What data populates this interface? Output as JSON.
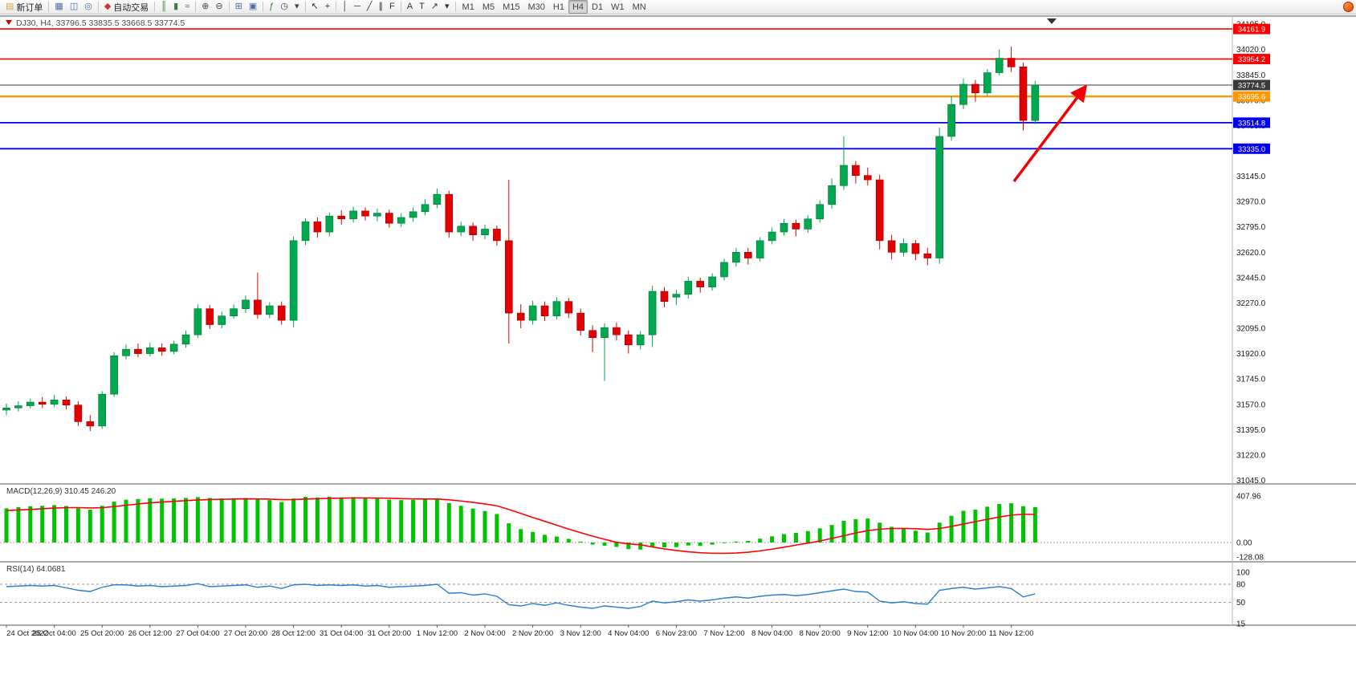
{
  "toolbar": {
    "groups": [
      {
        "items": [
          {
            "name": "new-order-button",
            "glyph": "▤",
            "glyph_color": "#d9a33c",
            "label": "新订单"
          }
        ]
      },
      {
        "items": [
          {
            "name": "charts-icon",
            "glyph": "▦",
            "glyph_color": "#4a6ea8"
          },
          {
            "name": "profile-icon",
            "glyph": "◫",
            "glyph_color": "#4a6ea8"
          },
          {
            "name": "market-watch-icon",
            "glyph": "◎",
            "glyph_color": "#4a6ea8"
          }
        ]
      },
      {
        "items": [
          {
            "name": "autotrading-button",
            "glyph": "◆",
            "glyph_color": "#c03a3a",
            "label": "自动交易"
          }
        ]
      },
      {
        "items": [
          {
            "name": "bar-chart-icon",
            "glyph": "║",
            "glyph_color": "#3c7a3c"
          },
          {
            "name": "candlestick-chart-icon",
            "glyph": "▮",
            "glyph_color": "#3c7a3c"
          },
          {
            "name": "line-chart-icon",
            "glyph": "≈",
            "glyph_color": "#3c7a3c"
          }
        ]
      },
      {
        "items": [
          {
            "name": "zoom-in-icon",
            "glyph": "⊕",
            "glyph_color": "#444444"
          },
          {
            "name": "zoom-out-icon",
            "glyph": "⊖",
            "glyph_color": "#444444"
          }
        ]
      },
      {
        "items": [
          {
            "name": "tile-windows-icon",
            "glyph": "⊞",
            "glyph_color": "#4a6ea8"
          },
          {
            "name": "auto-arrange-icon",
            "glyph": "▣",
            "glyph_color": "#4a6ea8"
          }
        ]
      },
      {
        "items": [
          {
            "name": "indicators-icon",
            "glyph": "ƒ",
            "glyph_color": "#3c7a3c"
          },
          {
            "name": "periods-icon",
            "glyph": "◷",
            "glyph_color": "#444444"
          },
          {
            "name": "templates-icon",
            "glyph": "▾",
            "glyph_color": "#444444"
          }
        ]
      },
      {
        "items": [
          {
            "name": "cursor-icon",
            "glyph": "↖",
            "glyph_color": "#333333"
          },
          {
            "name": "crosshair-icon",
            "glyph": "+",
            "glyph_color": "#333333"
          }
        ]
      },
      {
        "items": [
          {
            "name": "vertical-line-icon",
            "glyph": "│",
            "glyph_color": "#333333"
          },
          {
            "name": "horizontal-line-icon",
            "glyph": "─",
            "glyph_color": "#333333"
          },
          {
            "name": "trendline-icon",
            "glyph": "╱",
            "glyph_color": "#333333"
          },
          {
            "name": "channel-icon",
            "glyph": "∥",
            "glyph_color": "#333333"
          },
          {
            "name": "fibonacci-icon",
            "glyph": "F",
            "glyph_color": "#333333"
          }
        ]
      },
      {
        "items": [
          {
            "name": "text-label-icon",
            "glyph": "A",
            "glyph_color": "#333333"
          },
          {
            "name": "text-icon",
            "glyph": "T",
            "glyph_color": "#333333"
          },
          {
            "name": "arrows-tool-icon",
            "glyph": "↗",
            "glyph_color": "#333333"
          },
          {
            "name": "objects-dropdown-icon",
            "glyph": "▾",
            "glyph_color": "#333333"
          }
        ]
      },
      {
        "items": [
          {
            "name": "timeframe-m1",
            "label": "M1",
            "tf": true
          },
          {
            "name": "timeframe-m5",
            "label": "M5",
            "tf": true
          },
          {
            "name": "timeframe-m15",
            "label": "M15",
            "tf": true
          },
          {
            "name": "timeframe-m30",
            "label": "M30",
            "tf": true
          },
          {
            "name": "timeframe-h1",
            "label": "H1",
            "tf": true
          },
          {
            "name": "timeframe-h4",
            "label": "H4",
            "tf": true,
            "active": true
          },
          {
            "name": "timeframe-d1",
            "label": "D1",
            "tf": true
          },
          {
            "name": "timeframe-w1",
            "label": "W1",
            "tf": true
          },
          {
            "name": "timeframe-mn",
            "label": "MN",
            "tf": true
          }
        ]
      }
    ]
  },
  "chart": {
    "symbol_info": "DJ30, H4, 33796.5 33835.5 33668.5 33774.5",
    "hlines": [
      {
        "label": "34161.9",
        "price": 34161.9,
        "color": "#ff0000",
        "width": 1.6
      },
      {
        "label": "33954.2",
        "price": 33954.2,
        "color": "#ff0000",
        "width": 1.6
      },
      {
        "label": "33774.5",
        "price": 33774.5,
        "color": "#3a3a3a",
        "width": 1.1,
        "role": "current-price"
      },
      {
        "label": "33695.6",
        "price": 33695.6,
        "color": "#ff9800",
        "width": 2.4
      },
      {
        "label": "33514.8",
        "price": 33514.8,
        "color": "#0000ee",
        "width": 1.8
      },
      {
        "label": "33335.0",
        "price": 33335.0,
        "color": "#0000ee",
        "width": 1.8
      }
    ],
    "price_axis": [
      "34195.0",
      "34020.0",
      "33845.0",
      "33670.0",
      "33495.0",
      "33320.0",
      "33145.0",
      "32970.0",
      "32795.0",
      "32620.0",
      "32445.0",
      "32270.0",
      "32095.0",
      "31920.0",
      "31745.0",
      "31570.0",
      "31395.0",
      "31220.0",
      "31045.0"
    ]
  },
  "macd": {
    "label": "MACD(12,26,9) 310.45 246.20",
    "axis": [
      {
        "v": 407.96,
        "t": "407.96"
      },
      {
        "v": 0,
        "t": "0.00"
      },
      {
        "v": -128.08,
        "t": "-128.08"
      }
    ]
  },
  "rsi": {
    "label": "RSI(14) 64.0681",
    "axis": [
      {
        "v": 100,
        "t": "100"
      },
      {
        "v": 80,
        "t": "80"
      },
      {
        "v": 50,
        "t": "50"
      },
      {
        "v": 15,
        "t": "15"
      }
    ],
    "levels": [
      80,
      50
    ]
  },
  "chart_data": {
    "type": "candlestick",
    "symbol": "DJ30",
    "period": "H4",
    "title": "DJ30, H4",
    "ohlc_current": {
      "open": 33796.5,
      "high": 33835.5,
      "low": 33668.5,
      "close": 33774.5
    },
    "ylim": [
      31020,
      34240
    ],
    "grid": "off",
    "hlines": [
      34161.9,
      33954.2,
      33774.5,
      33695.6,
      33514.8,
      33335.0
    ],
    "x_labels": [
      "24 Oct 2022",
      "25 Oct 04:00",
      "25 Oct 20:00",
      "26 Oct 12:00",
      "27 Oct 04:00",
      "27 Oct 20:00",
      "28 Oct 12:00",
      "31 Oct 04:00",
      "31 Oct 20:00",
      "1 Nov 12:00",
      "2 Nov 04:00",
      "2 Nov 20:00",
      "3 Nov 12:00",
      "4 Nov 04:00",
      "6 Nov 23:00",
      "7 Nov 12:00",
      "8 Nov 04:00",
      "8 Nov 20:00",
      "9 Nov 12:00",
      "10 Nov 04:00",
      "10 Nov 20:00",
      "11 Nov 12:00"
    ],
    "bars_per_label": 4,
    "candles_ohlc": [
      [
        31530,
        31575,
        31495,
        31545
      ],
      [
        31545,
        31590,
        31520,
        31560
      ],
      [
        31560,
        31610,
        31540,
        31585
      ],
      [
        31585,
        31620,
        31545,
        31570
      ],
      [
        31570,
        31635,
        31550,
        31600
      ],
      [
        31600,
        31625,
        31535,
        31565
      ],
      [
        31565,
        31590,
        31420,
        31450
      ],
      [
        31450,
        31495,
        31385,
        31420
      ],
      [
        31420,
        31660,
        31400,
        31640
      ],
      [
        31640,
        31930,
        31620,
        31905
      ],
      [
        31905,
        31985,
        31880,
        31950
      ],
      [
        31950,
        31990,
        31895,
        31920
      ],
      [
        31920,
        31995,
        31900,
        31960
      ],
      [
        31960,
        31990,
        31905,
        31935
      ],
      [
        31935,
        32010,
        31915,
        31985
      ],
      [
        31985,
        32080,
        31960,
        32050
      ],
      [
        32050,
        32260,
        32030,
        32230
      ],
      [
        32230,
        32255,
        32090,
        32120
      ],
      [
        32120,
        32210,
        32095,
        32180
      ],
      [
        32180,
        32260,
        32160,
        32230
      ],
      [
        32230,
        32320,
        32200,
        32290
      ],
      [
        32290,
        32480,
        32160,
        32190
      ],
      [
        32190,
        32275,
        32165,
        32250
      ],
      [
        32250,
        32280,
        32120,
        32150
      ],
      [
        32150,
        32730,
        32100,
        32700
      ],
      [
        32700,
        32855,
        32670,
        32830
      ],
      [
        32830,
        32860,
        32720,
        32760
      ],
      [
        32760,
        32895,
        32730,
        32870
      ],
      [
        32870,
        32910,
        32810,
        32850
      ],
      [
        32850,
        32935,
        32825,
        32905
      ],
      [
        32905,
        32930,
        32840,
        32870
      ],
      [
        32870,
        32920,
        32835,
        32890
      ],
      [
        32890,
        32915,
        32790,
        32820
      ],
      [
        32820,
        32890,
        32795,
        32860
      ],
      [
        32860,
        32930,
        32830,
        32900
      ],
      [
        32900,
        32985,
        32875,
        32950
      ],
      [
        32950,
        33060,
        32925,
        33020
      ],
      [
        33020,
        33045,
        32720,
        32760
      ],
      [
        32760,
        32830,
        32730,
        32800
      ],
      [
        32800,
        32825,
        32700,
        32740
      ],
      [
        32740,
        32810,
        32710,
        32780
      ],
      [
        32780,
        32805,
        32665,
        32700
      ],
      [
        32700,
        33120,
        31990,
        32200
      ],
      [
        32200,
        32260,
        32095,
        32150
      ],
      [
        32150,
        32285,
        32120,
        32250
      ],
      [
        32250,
        32280,
        32145,
        32180
      ],
      [
        32180,
        32310,
        32155,
        32280
      ],
      [
        32280,
        32305,
        32165,
        32200
      ],
      [
        32200,
        32230,
        32045,
        32080
      ],
      [
        32080,
        32115,
        31930,
        32030
      ],
      [
        32030,
        32130,
        31730,
        32100
      ],
      [
        32100,
        32135,
        32010,
        32050
      ],
      [
        32050,
        32080,
        31920,
        31980
      ],
      [
        31980,
        32075,
        31950,
        32050
      ],
      [
        32050,
        32390,
        31965,
        32350
      ],
      [
        32350,
        32380,
        32240,
        32280
      ],
      [
        32310,
        32360,
        32255,
        32330
      ],
      [
        32330,
        32450,
        32300,
        32420
      ],
      [
        32420,
        32445,
        32340,
        32380
      ],
      [
        32380,
        32475,
        32355,
        32450
      ],
      [
        32450,
        32575,
        32425,
        32550
      ],
      [
        32550,
        32650,
        32520,
        32620
      ],
      [
        32620,
        32650,
        32535,
        32580
      ],
      [
        32580,
        32725,
        32555,
        32700
      ],
      [
        32700,
        32790,
        32675,
        32760
      ],
      [
        32760,
        32850,
        32735,
        32820
      ],
      [
        32820,
        32845,
        32730,
        32780
      ],
      [
        32780,
        32875,
        32755,
        32850
      ],
      [
        32850,
        32980,
        32825,
        32950
      ],
      [
        32950,
        33130,
        32920,
        33080
      ],
      [
        33080,
        33420,
        33050,
        33220
      ],
      [
        33220,
        33250,
        33095,
        33150
      ],
      [
        33150,
        33205,
        33080,
        33120
      ],
      [
        33120,
        33155,
        32640,
        32700
      ],
      [
        32700,
        32740,
        32570,
        32620
      ],
      [
        32620,
        32715,
        32590,
        32680
      ],
      [
        32680,
        32705,
        32565,
        32610
      ],
      [
        32610,
        32650,
        32530,
        32580
      ],
      [
        32580,
        33480,
        32540,
        33420
      ],
      [
        33420,
        33700,
        33390,
        33640
      ],
      [
        33640,
        33820,
        33610,
        33780
      ],
      [
        33780,
        33810,
        33660,
        33720
      ],
      [
        33720,
        33885,
        33695,
        33860
      ],
      [
        33860,
        34020,
        33840,
        33960
      ],
      [
        33960,
        34040,
        33865,
        33900
      ],
      [
        33900,
        33930,
        33460,
        33530
      ],
      [
        33530,
        33805,
        33505,
        33774.5
      ]
    ],
    "macd": {
      "type": "bar+line",
      "params": "12,26,9",
      "current_main": 310.45,
      "current_signal": 246.2,
      "ylim": [
        -170,
        490
      ],
      "histogram": [
        300,
        310,
        318,
        322,
        328,
        320,
        300,
        288,
        322,
        358,
        375,
        382,
        388,
        384,
        386,
        390,
        398,
        390,
        386,
        386,
        390,
        378,
        372,
        355,
        385,
        400,
        395,
        400,
        396,
        398,
        390,
        386,
        376,
        372,
        374,
        378,
        382,
        345,
        322,
        298,
        276,
        250,
        168,
        118,
        92,
        68,
        52,
        32,
        8,
        -18,
        -28,
        -38,
        -58,
        -62,
        -36,
        -42,
        -40,
        -26,
        -30,
        -18,
        -6,
        8,
        14,
        34,
        54,
        74,
        84,
        100,
        124,
        154,
        190,
        205,
        210,
        174,
        138,
        124,
        104,
        88,
        174,
        234,
        278,
        288,
        314,
        338,
        344,
        318,
        310.45
      ],
      "signal": [
        280,
        285,
        290,
        296,
        302,
        306,
        306,
        303,
        305,
        315,
        327,
        338,
        348,
        355,
        361,
        367,
        373,
        377,
        379,
        381,
        383,
        382,
        380,
        376,
        377,
        381,
        384,
        387,
        389,
        391,
        391,
        390,
        388,
        385,
        382,
        381,
        381,
        374,
        364,
        352,
        338,
        322,
        290,
        255,
        220,
        186,
        152,
        118,
        86,
        56,
        28,
        2,
        -12,
        -20,
        -38,
        -56,
        -70,
        -81,
        -89,
        -94,
        -95,
        -92,
        -85,
        -73,
        -58,
        -41,
        -23,
        -5,
        14,
        36,
        60,
        84,
        104,
        117,
        123,
        124,
        121,
        115,
        123,
        141,
        162,
        183,
        204,
        224,
        240,
        248,
        246.2
      ]
    },
    "rsi": {
      "type": "line",
      "period": 14,
      "current": 64.0681,
      "levels": [
        80,
        50
      ],
      "values": [
        76,
        77,
        78,
        77,
        78,
        74,
        70,
        68,
        75,
        79,
        79,
        77,
        78,
        76,
        77,
        78,
        81,
        76,
        77,
        78,
        79,
        75,
        77,
        73,
        79,
        80,
        78,
        79,
        78,
        79,
        77,
        78,
        75,
        76,
        77,
        78,
        80,
        65,
        66,
        62,
        64,
        60,
        46,
        44,
        48,
        45,
        49,
        45,
        42,
        40,
        44,
        42,
        40,
        43,
        52,
        49,
        51,
        54,
        52,
        54,
        57,
        59,
        57,
        60,
        62,
        63,
        61,
        63,
        66,
        69,
        72,
        68,
        67,
        52,
        49,
        51,
        48,
        47,
        70,
        73,
        75,
        72,
        74,
        76,
        73,
        59,
        64.07
      ]
    }
  }
}
